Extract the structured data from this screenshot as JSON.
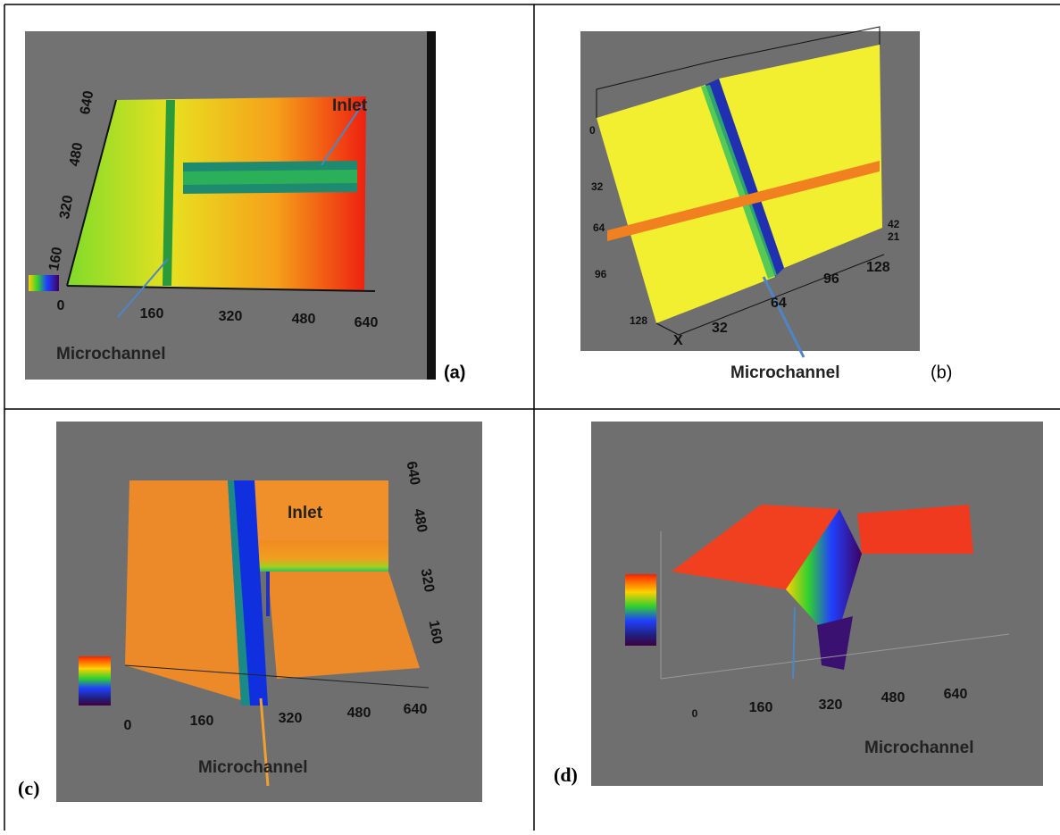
{
  "panels": [
    {
      "label": "(a)",
      "annotations": [
        "Inlet",
        "Microchannel"
      ],
      "axis_left": [
        "640",
        "480",
        "320",
        "160"
      ],
      "axis_bottom": [
        "0",
        "160",
        "320",
        "480",
        "640"
      ]
    },
    {
      "label": "(b)",
      "annotations": [
        "Microchannel"
      ],
      "axis_left": [
        "0",
        "32",
        "64",
        "96",
        "128"
      ],
      "axis_bottom": [
        "32",
        "64",
        "96",
        "128"
      ],
      "axis_right": [
        "42",
        "21"
      ],
      "axis_name": "X"
    },
    {
      "label": "(c)",
      "annotations": [
        "Inlet",
        "Microchannel"
      ],
      "axis_right": [
        "640",
        "480",
        "320",
        "160"
      ],
      "axis_bottom": [
        "0",
        "160",
        "320",
        "480",
        "640"
      ]
    },
    {
      "label": "(d)",
      "annotations": [
        "Microchannel"
      ],
      "axis_bottom": [
        "0",
        "160",
        "320",
        "480",
        "640"
      ]
    }
  ]
}
